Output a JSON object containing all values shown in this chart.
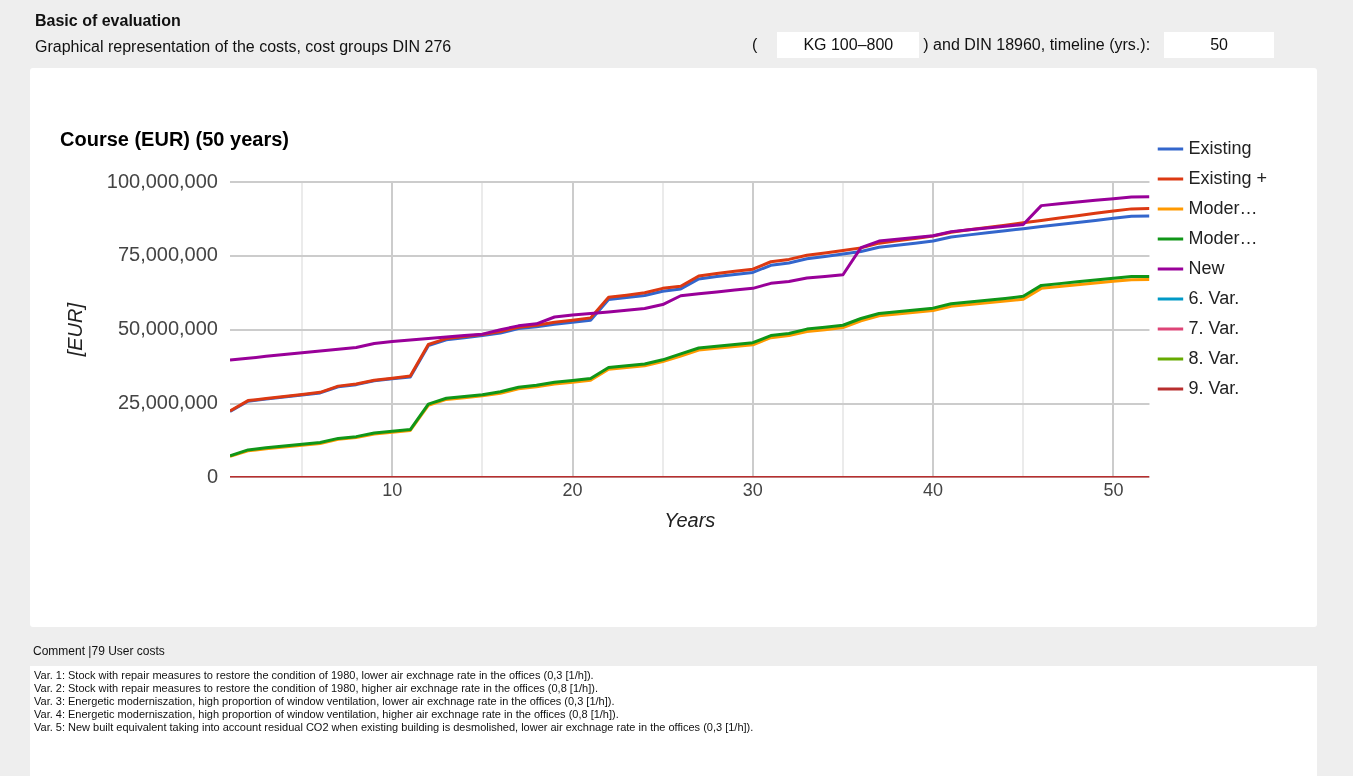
{
  "chart_data": {
    "type": "line",
    "title": "Course (EUR) (50 years)",
    "xlabel": "Years",
    "ylabel": "[EUR]",
    "x": [
      1,
      2,
      3,
      4,
      5,
      6,
      7,
      8,
      9,
      10,
      11,
      12,
      13,
      14,
      15,
      16,
      17,
      18,
      19,
      20,
      21,
      22,
      23,
      24,
      25,
      26,
      27,
      28,
      29,
      30,
      31,
      32,
      33,
      34,
      35,
      36,
      37,
      38,
      39,
      40,
      41,
      42,
      43,
      44,
      45,
      46,
      47,
      48,
      49,
      50,
      51,
      52
    ],
    "series": [
      {
        "name": "Existing",
        "color": "#3366cc",
        "values": [
          22300000,
          25800000,
          26500000,
          27200000,
          27900000,
          28600000,
          30700000,
          31400000,
          32700000,
          33400000,
          34000000,
          44600000,
          46600000,
          47300000,
          48000000,
          48900000,
          50400000,
          51000000,
          51800000,
          52500000,
          53200000,
          60200000,
          60900000,
          61600000,
          63000000,
          63800000,
          67200000,
          68000000,
          68700000,
          69400000,
          71800000,
          72600000,
          74000000,
          74800000,
          75600000,
          76500000,
          77900000,
          78600000,
          79300000,
          80000000,
          81400000,
          82100000,
          82800000,
          83500000,
          84200000,
          84900000,
          85600000,
          86300000,
          87000000,
          87700000,
          88400000,
          88500000
        ]
      },
      {
        "name": "Existing +",
        "color": "#dc3912",
        "values": [
          22500000,
          26000000,
          26700000,
          27400000,
          28100000,
          28800000,
          30900000,
          31600000,
          32900000,
          33600000,
          34300000,
          45000000,
          47000000,
          47700000,
          48400000,
          49400000,
          50800000,
          51500000,
          52500000,
          53200000,
          54000000,
          61000000,
          61700000,
          62500000,
          64000000,
          64700000,
          68200000,
          69000000,
          69800000,
          70500000,
          73000000,
          73800000,
          75200000,
          76000000,
          76800000,
          77700000,
          79300000,
          80100000,
          80900000,
          81700000,
          83000000,
          83800000,
          84600000,
          85400000,
          86200000,
          87000000,
          87800000,
          88600000,
          89400000,
          90200000,
          90900000,
          91000000
        ]
      },
      {
        "name": "Moder…",
        "color": "#ff9900",
        "values": [
          7100000,
          9000000,
          9700000,
          10300000,
          10900000,
          11500000,
          12900000,
          13500000,
          14700000,
          15300000,
          15900000,
          24400000,
          26400000,
          27000000,
          27600000,
          28500000,
          30000000,
          30700000,
          31600000,
          32200000,
          32900000,
          36600000,
          37200000,
          37800000,
          39200000,
          41100000,
          43100000,
          43700000,
          44300000,
          44900000,
          47300000,
          48000000,
          49400000,
          50000000,
          50700000,
          53000000,
          54700000,
          55300000,
          55900000,
          56500000,
          57900000,
          58500000,
          59100000,
          59700000,
          60300000,
          64000000,
          64600000,
          65200000,
          65800000,
          66400000,
          66900000,
          67000000
        ]
      },
      {
        "name": "Moder…",
        "color": "#109618",
        "values": [
          7300000,
          9300000,
          10000000,
          10600000,
          11200000,
          11800000,
          13200000,
          13800000,
          15000000,
          15600000,
          16200000,
          24800000,
          26800000,
          27400000,
          28000000,
          29000000,
          30500000,
          31200000,
          32200000,
          32800000,
          33500000,
          37200000,
          37800000,
          38400000,
          39800000,
          41800000,
          43800000,
          44400000,
          45000000,
          45600000,
          48000000,
          48700000,
          50200000,
          50800000,
          51500000,
          53800000,
          55500000,
          56100000,
          56700000,
          57300000,
          58800000,
          59400000,
          60000000,
          60600000,
          61300000,
          65000000,
          65600000,
          66200000,
          66800000,
          67400000,
          68000000,
          68000000
        ]
      },
      {
        "name": "New",
        "color": "#990099",
        "values": [
          39700000,
          40300000,
          41000000,
          41600000,
          42200000,
          42800000,
          43400000,
          44000000,
          45300000,
          46000000,
          46500000,
          47000000,
          47500000,
          48000000,
          48500000,
          50000000,
          51300000,
          52000000,
          54300000,
          55000000,
          55500000,
          56000000,
          56600000,
          57200000,
          58500000,
          61500000,
          62200000,
          62800000,
          63400000,
          64000000,
          65700000,
          66300000,
          67500000,
          68000000,
          68600000,
          77800000,
          80000000,
          80600000,
          81200000,
          81800000,
          83200000,
          83800000,
          84400000,
          85000000,
          85600000,
          92000000,
          92600000,
          93200000,
          93800000,
          94300000,
          94900000,
          95000000
        ]
      },
      {
        "name": "6. Var.",
        "color": "#0099c6",
        "values": [
          null,
          null,
          null,
          null,
          null,
          null,
          null,
          null,
          null,
          null,
          null,
          null,
          null,
          null,
          null,
          null,
          null,
          null,
          null,
          null,
          null,
          null,
          null,
          null,
          null,
          null,
          null,
          null,
          null,
          null,
          null,
          null,
          null,
          null,
          null,
          null,
          null,
          null,
          null,
          null,
          null,
          null,
          null,
          null,
          null,
          null,
          null,
          null,
          null,
          null,
          null,
          null
        ]
      },
      {
        "name": "7. Var.",
        "color": "#dd4477",
        "values": [
          null,
          null,
          null,
          null,
          null,
          null,
          null,
          null,
          null,
          null,
          null,
          null,
          null,
          null,
          null,
          null,
          null,
          null,
          null,
          null,
          null,
          null,
          null,
          null,
          null,
          null,
          null,
          null,
          null,
          null,
          null,
          null,
          null,
          null,
          null,
          null,
          null,
          null,
          null,
          null,
          null,
          null,
          null,
          null,
          null,
          null,
          null,
          null,
          null,
          null,
          null,
          null
        ]
      },
      {
        "name": "8. Var.",
        "color": "#66aa00",
        "values": [
          null,
          null,
          null,
          null,
          null,
          null,
          null,
          null,
          null,
          null,
          null,
          null,
          null,
          null,
          null,
          null,
          null,
          null,
          null,
          null,
          null,
          null,
          null,
          null,
          null,
          null,
          null,
          null,
          null,
          null,
          null,
          null,
          null,
          null,
          null,
          null,
          null,
          null,
          null,
          null,
          null,
          null,
          null,
          null,
          null,
          null,
          null,
          null,
          null,
          null,
          null,
          null
        ]
      },
      {
        "name": "9. Var.",
        "color": "#b82e2e",
        "values": [
          0,
          0,
          0,
          0,
          0,
          0,
          0,
          0,
          0,
          0,
          0,
          0,
          0,
          0,
          0,
          0,
          0,
          0,
          0,
          0,
          0,
          0,
          0,
          0,
          0,
          0,
          0,
          0,
          0,
          0,
          0,
          0,
          0,
          0,
          0,
          0,
          0,
          0,
          0,
          0,
          0,
          0,
          0,
          0,
          0,
          0,
          0,
          0,
          0,
          0,
          0,
          0
        ]
      }
    ],
    "xlim": [
      1,
      52
    ],
    "xticks": [
      {
        "value": 5,
        "label": null
      },
      10,
      {
        "value": 15,
        "label": null
      },
      20,
      {
        "value": 25,
        "label": null
      },
      30,
      {
        "value": 35,
        "label": null
      },
      40,
      {
        "value": 45,
        "label": null
      },
      50
    ],
    "ylim": [
      0,
      100000000
    ],
    "yticks": [
      {
        "value": 0,
        "label": "0"
      },
      {
        "value": 25000000,
        "label": "25,000,000"
      },
      {
        "value": 50000000,
        "label": "50,000,000"
      },
      {
        "value": 75000000,
        "label": "75,000,000"
      },
      {
        "value": 100000000,
        "label": "100,000,000"
      }
    ],
    "grid": true,
    "legend": "right",
    "annotations": [
      "Basic of evaluation",
      "Graphical representation of the costs, cost groups DIN 276",
      "(",
      "KG 100–800",
      ") and DIN 18960, timeline (yrs.):",
      "50",
      "Comment |79 User costs",
      "Var. 1: Stock with repair measures to restore the condition of 1980, lower air exchnage rate in the offices (0,3 [1/h]).",
      "Var. 2: Stock with repair measures to restore the condition of 1980, higher air exchnage rate in the offices  (0,8 [1/h]).",
      "Var. 3: Energetic moderniszation, high proportion of window ventilation, lower air exchnage rate in the offices (0,3 [1/h]).",
      "Var. 4: Energetic moderniszation, high proportion of window ventilation, higher air exchnage rate in the offices (0,8 [1/h]).",
      "Var. 5: New built equivalent taking into account residual CO2 when existing building is desmolished, lower air exchnage rate in the offices (0,3 [1/h])."
    ]
  }
}
